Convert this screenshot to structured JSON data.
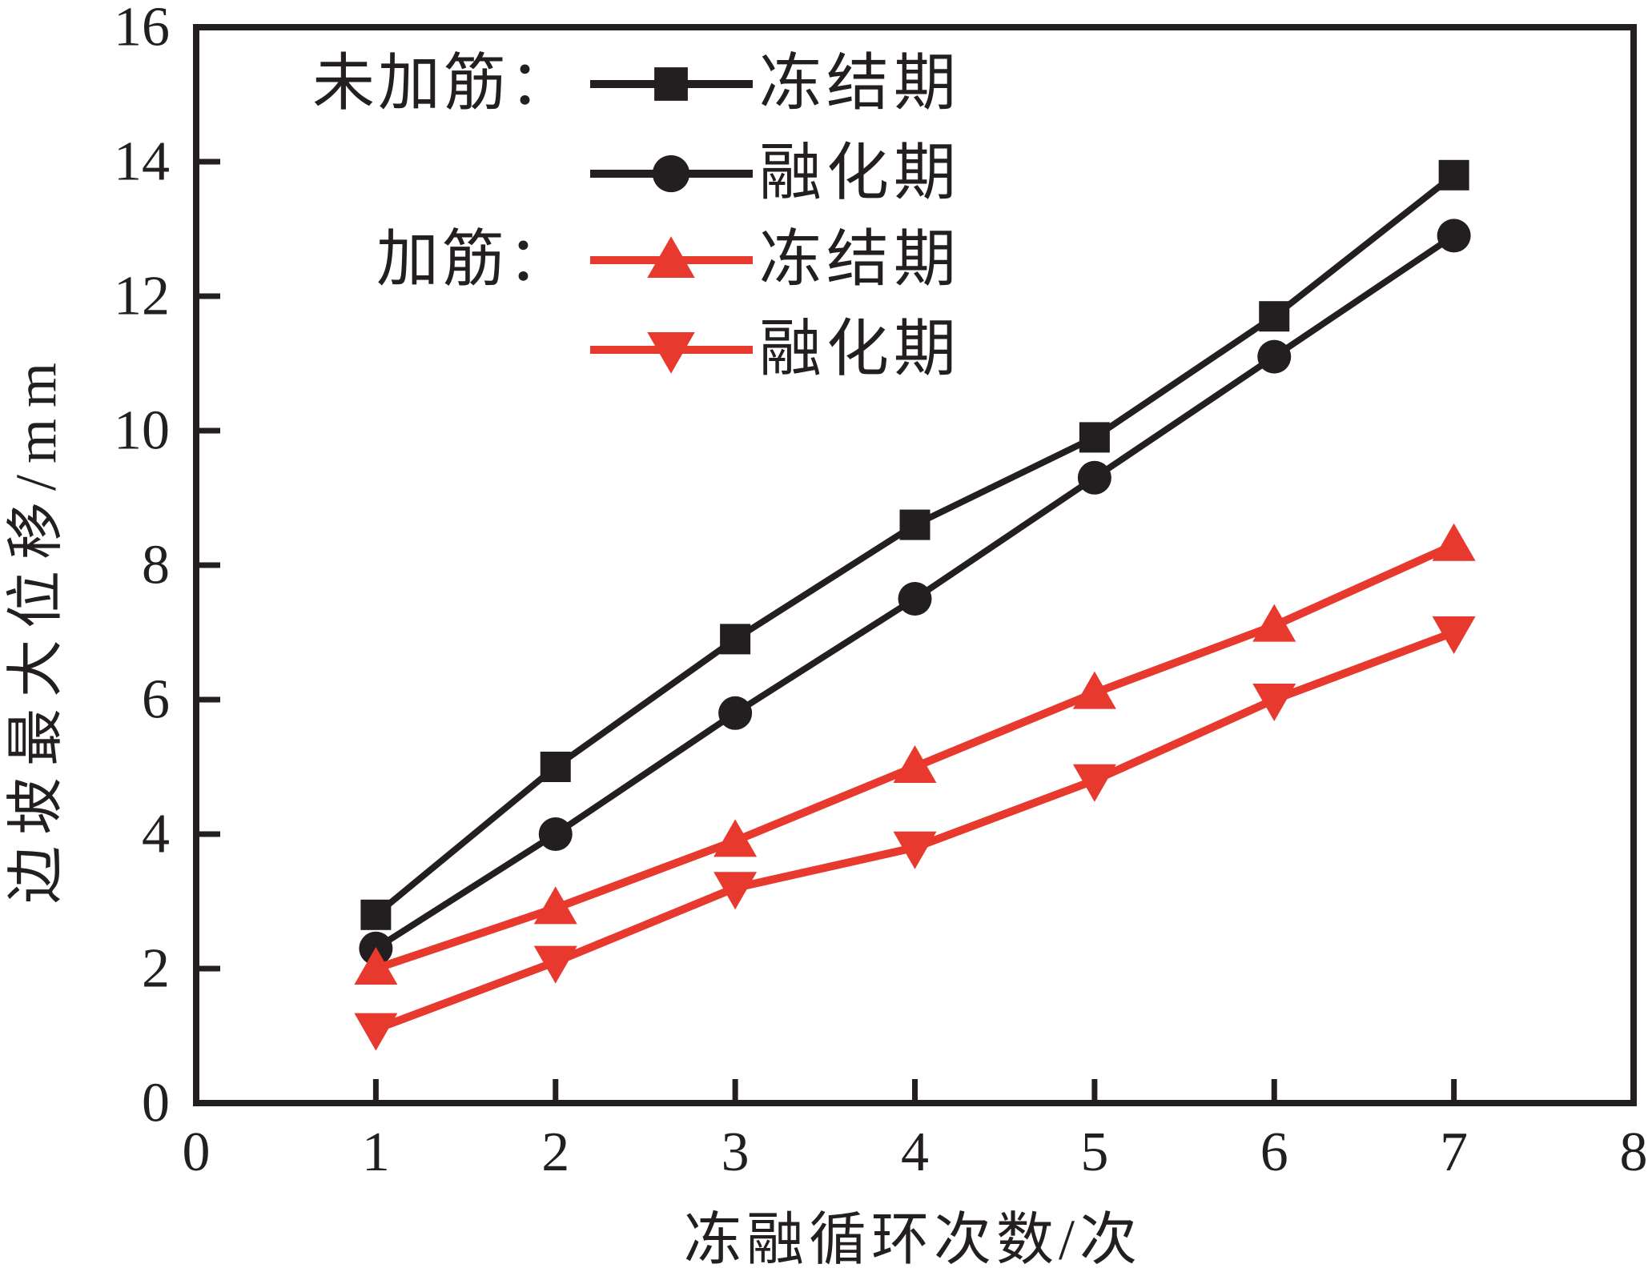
{
  "chart_data": {
    "type": "line",
    "title": "",
    "xlabel": "冻融循环次数/次",
    "ylabel": "边坡最大位移/mm",
    "xlim": [
      0,
      8
    ],
    "ylim": [
      0,
      16
    ],
    "x_ticks": [
      "0",
      "1",
      "2",
      "3",
      "4",
      "5",
      "6",
      "7",
      "8"
    ],
    "y_ticks": [
      "0",
      "2",
      "4",
      "6",
      "8",
      "10",
      "12",
      "14",
      "16"
    ],
    "x": [
      1,
      2,
      3,
      4,
      5,
      6,
      7
    ],
    "grid": false,
    "legend_position": "upper left inside",
    "series": [
      {
        "name": "冻结期",
        "group": "未加筋",
        "marker": "square",
        "color": "#231f20",
        "line_width": 8,
        "values": [
          2.8,
          5.0,
          6.9,
          8.6,
          9.9,
          11.7,
          13.8
        ]
      },
      {
        "name": "融化期",
        "group": "未加筋",
        "marker": "circle",
        "color": "#231f20",
        "line_width": 8,
        "values": [
          2.3,
          4.0,
          5.8,
          7.5,
          9.3,
          11.1,
          12.9
        ]
      },
      {
        "name": "冻结期",
        "group": "加筋",
        "marker": "triangle-up",
        "color": "#e8392e",
        "line_width": 10,
        "values": [
          2.0,
          2.9,
          3.9,
          5.0,
          6.1,
          7.1,
          8.3
        ]
      },
      {
        "name": "融化期",
        "group": "加筋",
        "marker": "triangle-down",
        "color": "#e8392e",
        "line_width": 10,
        "values": [
          1.1,
          2.1,
          3.2,
          3.8,
          4.8,
          6.0,
          7.0
        ]
      }
    ]
  },
  "legend": {
    "groups": [
      {
        "label": "未加筋："
      },
      {
        "label": "加筋："
      }
    ],
    "entries": [
      {
        "label": "冻结期"
      },
      {
        "label": "融化期"
      },
      {
        "label": "冻结期"
      },
      {
        "label": "融化期"
      }
    ]
  },
  "colors": {
    "axis": "#231f20",
    "background": "#ffffff",
    "black_series": "#231f20",
    "red_series": "#e8392e"
  }
}
